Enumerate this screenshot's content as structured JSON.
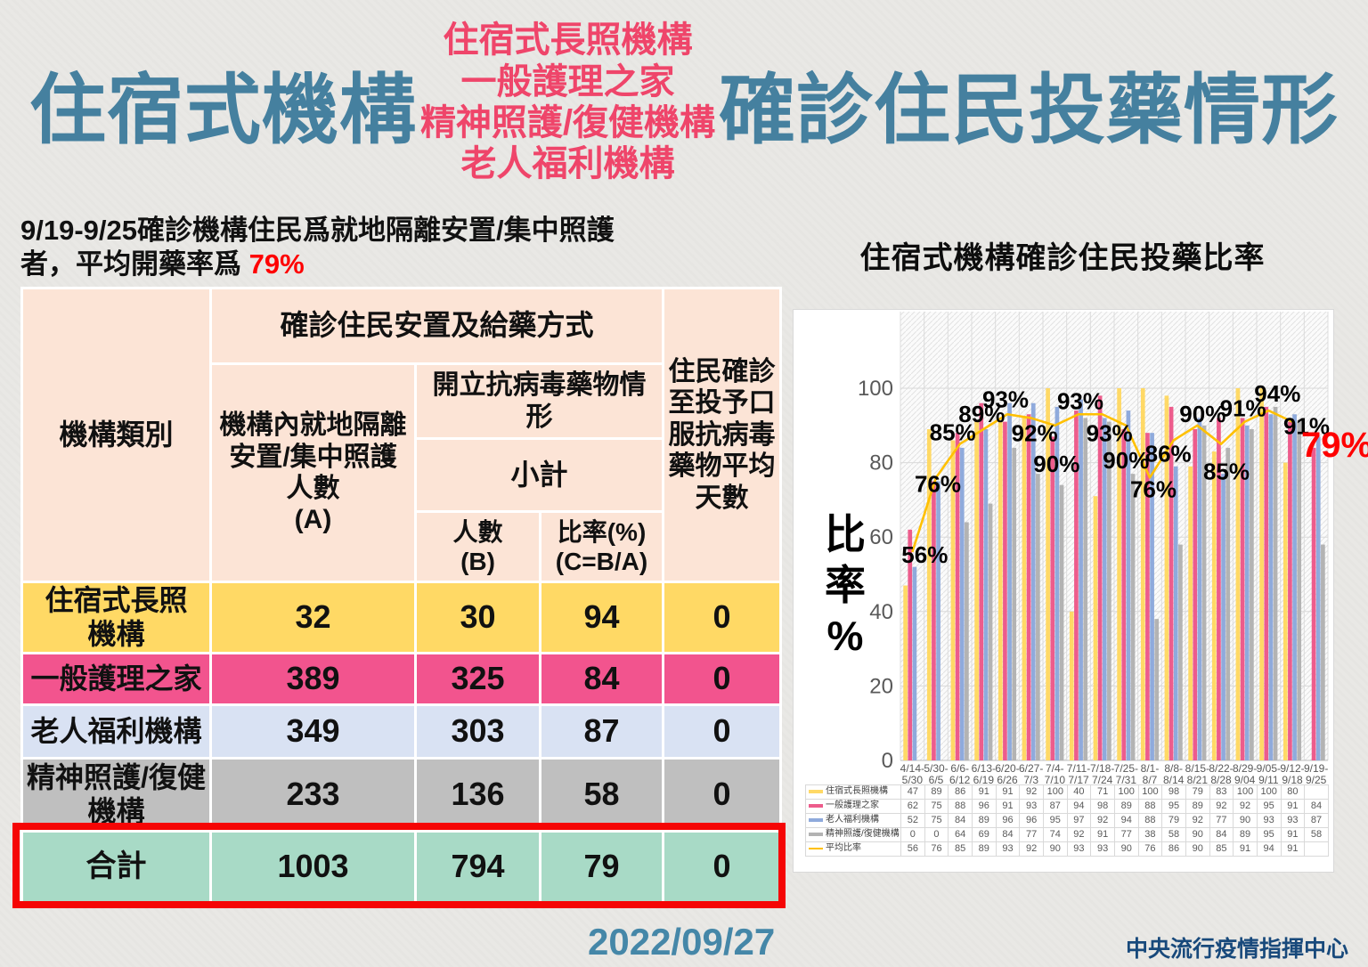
{
  "colors": {
    "title_blue": "#45809f",
    "title_pink": "#ef456a",
    "highlight_red": "#fe0000",
    "footer_date_blue": "#4587a8",
    "footer_org_navy": "#18497b",
    "table_header_peach": "#fce4d6",
    "total_outline_red": "#f50505"
  },
  "title": {
    "left": "住宿式機構",
    "middle_lines": [
      "住宿式長照機構",
      "一般護理之家",
      "精神照護/復健機構",
      "老人福利機構"
    ],
    "right": "確診住民投藥情形"
  },
  "subtitle": {
    "line1": "9/19-9/25確診機構住民爲就地隔離安置/集中照護",
    "line2_prefix": "者，平均開藥率爲 ",
    "highlight": "79%"
  },
  "summary_table": {
    "headers": {
      "col_category": "機構類別",
      "group": "確診住民安置及給藥方式",
      "col_a": "機構內就地隔離\n安置/集中照護\n人數\n(A)",
      "antiviral": "開立抗病毒藥物情\n形",
      "subtotal": "小計",
      "col_b": "人數\n(B)",
      "col_c": "比率(%)\n(C=B/A)",
      "col_days": "住民確診\n至投予口\n服抗病毒\n藥物平均\n天數"
    },
    "rows": [
      {
        "label": "住宿式長照\n機構",
        "color": "#ffd965",
        "values": [
          "32",
          "30",
          "94",
          "0"
        ]
      },
      {
        "label": "一般護理之家",
        "color": "#f2548e",
        "values": [
          "389",
          "325",
          "84",
          "0"
        ]
      },
      {
        "label": "老人福利機構",
        "color": "#d9e2f3",
        "values": [
          "349",
          "303",
          "87",
          "0"
        ]
      },
      {
        "label": "精神照護/復健\n機構",
        "color": "#bfbfbf",
        "values": [
          "233",
          "136",
          "58",
          "0"
        ]
      }
    ],
    "total": {
      "label": "合計",
      "color": "#a8dac6",
      "values": [
        "1003",
        "794",
        "79",
        "0"
      ]
    }
  },
  "chart_data": {
    "type": "bar+line",
    "title": "住宿式機構確診住民投藥比率",
    "ylabel": "比率%",
    "ylim": [
      0,
      100
    ],
    "yticks": [
      0,
      20,
      40,
      60,
      80,
      100
    ],
    "grid": true,
    "legend_position": "data-table-left",
    "categories": [
      [
        "4/14-",
        "5/30"
      ],
      [
        "5/30-",
        "6/5"
      ],
      [
        "6/6-",
        "6/12"
      ],
      [
        "6/13-",
        "6/19"
      ],
      [
        "6/20-",
        "6/26"
      ],
      [
        "6/27-",
        "7/3"
      ],
      [
        "7/4-",
        "7/10"
      ],
      [
        "7/11-",
        "7/17"
      ],
      [
        "7/18-",
        "7/24"
      ],
      [
        "7/25-",
        "7/31"
      ],
      [
        "8/1-",
        "8/7"
      ],
      [
        "8/8-",
        "8/14"
      ],
      [
        "8/15-",
        "8/21"
      ],
      [
        "8/22-",
        "8/28"
      ],
      [
        "8/29-",
        "9/04"
      ],
      [
        "9/05-",
        "9/11"
      ],
      [
        "9/12-",
        "9/18"
      ],
      [
        "9/19-",
        "9/25"
      ]
    ],
    "series": [
      {
        "name": "住宿式長照機構",
        "type": "bar",
        "color": "#ffd966",
        "values": [
          47,
          89,
          86,
          91,
          91,
          92,
          100,
          40,
          71,
          100,
          100,
          98,
          79,
          83,
          100,
          100,
          80,
          null
        ]
      },
      {
        "name": "一般護理之家",
        "type": "bar",
        "color": "#ed5c8c",
        "values": [
          62,
          75,
          88,
          96,
          91,
          93,
          87,
          94,
          98,
          89,
          88,
          95,
          89,
          92,
          92,
          95,
          91,
          84
        ]
      },
      {
        "name": "老人福利機構",
        "type": "bar",
        "color": "#8faadc",
        "values": [
          52,
          75,
          84,
          89,
          96,
          96,
          95,
          97,
          92,
          94,
          88,
          79,
          92,
          77,
          90,
          93,
          93,
          87
        ]
      },
      {
        "name": "精神照護/復健機構",
        "type": "bar",
        "color": "#b3b3b3",
        "values": [
          0,
          0,
          64,
          69,
          84,
          77,
          74,
          92,
          91,
          77,
          38,
          58,
          90,
          84,
          89,
          95,
          91,
          58
        ]
      },
      {
        "name": "平均比率",
        "type": "line",
        "color": "#ffc000",
        "values": [
          56,
          76,
          85,
          89,
          93,
          92,
          90,
          93,
          93,
          90,
          76,
          86,
          90,
          85,
          91,
          94,
          91,
          null
        ]
      }
    ],
    "line_labels": [
      "56%",
      "76%",
      "85%",
      "89%",
      "93%",
      "92%",
      "90%",
      "93%",
      "93%",
      "90%",
      "76%",
      "86%",
      "90%",
      "85%",
      "91%",
      "94%",
      "91%"
    ],
    "final_annotation": {
      "text": "79%",
      "color": "#fe0000"
    }
  },
  "footer": {
    "date": "2022/09/27",
    "org": "中央流行疫情指揮中心"
  }
}
